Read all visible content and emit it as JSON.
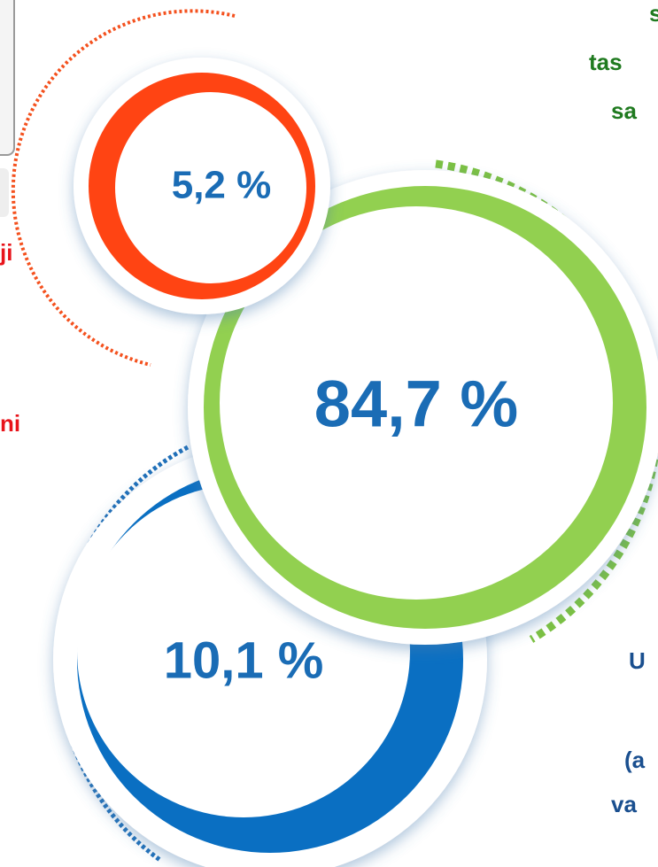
{
  "circles": [
    {
      "label": "5,2 %"
    },
    {
      "label": "84,7 %"
    },
    {
      "label": "10,1 %"
    }
  ],
  "left_fragments": [
    "ji",
    "ni"
  ],
  "right_top_fragments": [
    "s",
    "tas",
    "sa"
  ],
  "right_bottom_fragments": [
    "U",
    "(a",
    "va"
  ]
}
